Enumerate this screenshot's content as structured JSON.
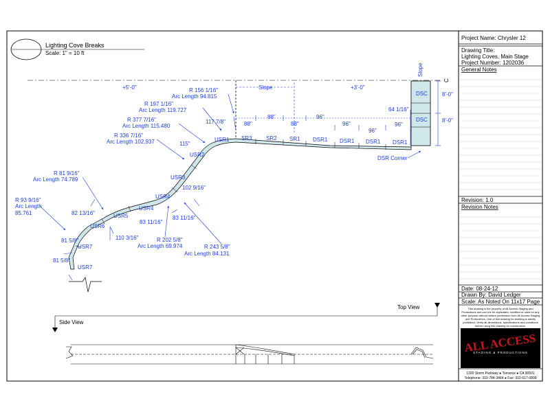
{
  "drawing": {
    "title": "Lighting Cove Breaks",
    "scale": "Scale: 1\" = 10 ft",
    "elev_left": "+5'-0\"",
    "elev_right": "+3'-0\"",
    "slope_label": "Slope",
    "slope_vertical": "Slope",
    "centerline": "C",
    "top_view": "Top View",
    "side_view": "Side View",
    "dsr_corner": "DSR Corner"
  },
  "segments": {
    "dsc_top": "DSC",
    "dsc_bottom": "DSC",
    "dsr1_a": "DSR1",
    "dsr1_b": "DSR1",
    "dsr1_c": "DSR1",
    "dsr1_d": "DSR1",
    "sr1": "SR1",
    "sr2": "SR2",
    "sr3": "SR3",
    "usr1": "USR1",
    "usr2": "USR2",
    "usr3": "USR3",
    "usr4_a": "USR4",
    "usr4_b": "USR4",
    "usr5": "USR5",
    "usr6": "USR6",
    "usr7_a": "USR7",
    "usr7_b": "USR7"
  },
  "dimensions": {
    "d88_a": "88\"",
    "d88_b": "88\"",
    "d88_c": "88\"",
    "d96_a": "96\"",
    "d96_b": "96\"",
    "d96_c": "96\"",
    "d96_d": "96\"",
    "d64": "64 1/16\"",
    "d8_top": "8'-0\"",
    "d8_bottom": "8'-0\"",
    "d117": "117 7/8\"",
    "d115": "115\"",
    "d102": "102 9/16\"",
    "d82": "82 13/16\"",
    "d83a": "83 11/16\"",
    "d83b": "83 11/16\"",
    "d110": "110 3/16\"",
    "d81a": "81 5/8\"",
    "d81b": "81 5/8\""
  },
  "radii": {
    "r156": "R 156 1/16\"",
    "r156_arc": "Arc Length 94.815",
    "r197": "R 197 1/16\"",
    "r197_arc": "Arc Length 119.727",
    "r377": "R 377 7/16\"",
    "r377_arc": "Arc Length 115.480",
    "r336": "R 336 7/16\"",
    "r336_arc": "Arc Length 102.937",
    "r81": "R 81 9/16\"",
    "r81_arc": "Arc Length 74.789",
    "r93": "R 93 9/16\"",
    "r93_arc1": "Arc Length",
    "r93_arc2": "85.761",
    "r202": "R 202 5/8\"",
    "r202_arc": "Arc Length 69.974",
    "r243": "R 243 5/8\"",
    "r243_arc": "Arc Length 84.131"
  },
  "titleblock": {
    "project_name": "Project Name:  Chrysler 12",
    "drawing_title_label": "Drawing Title:",
    "drawing_title": "Lighting Coves, Main Stage",
    "project_number": "Project Number:  1202036",
    "general_notes": "General Notes",
    "revision": "Revision:  1.0",
    "revision_notes": "Revision Notes",
    "date": "Date:  08-24-12",
    "drawn_by": "Drawn By:  David Ledger",
    "scale": "Scale:  As Noted On 11x17 Page",
    "disclaimer": [
      "This drawing is the property of All Access Staging and",
      "Productions and can not be duplicated, modified or used for any",
      "other purpose without written permission from All Access Staging",
      "and Productions. Use of this drawing for building is strictly",
      "prohibited. Verify all dimensions, specifications and conditions",
      "before using this drawing for construction."
    ],
    "logo_main": "ALL ACCESS",
    "logo_sub": "STAGING & PRODUCTIONS",
    "address": "1320 Storm Parkway ● Torrance ● CA 90501",
    "phone": "Telephone:  310-784-3464 ● Fax:  310-517-0899"
  }
}
